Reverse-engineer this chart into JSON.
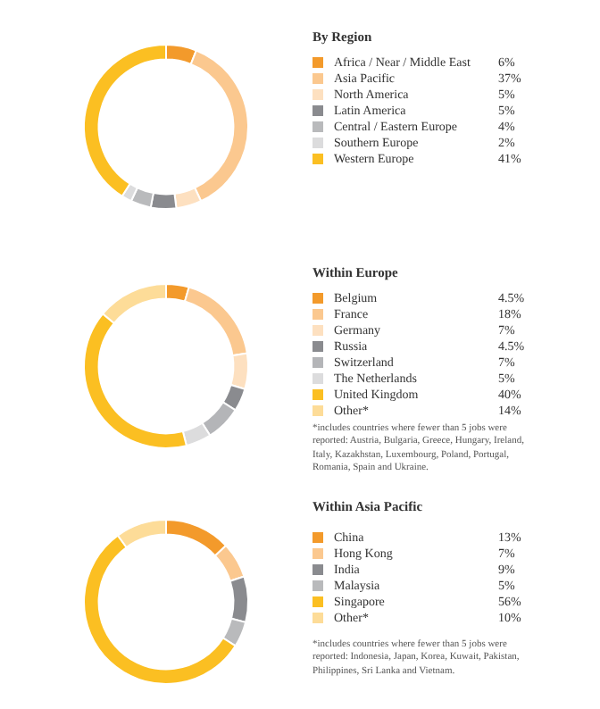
{
  "chart_data": [
    {
      "type": "donut",
      "title": "By Region",
      "categories": [
        "Africa / Near / Middle East",
        "Asia Pacific",
        "North America",
        "Latin America",
        "Central / Eastern Europe",
        "Southern Europe",
        "Western Europe"
      ],
      "values": [
        6,
        37,
        5,
        5,
        4,
        2,
        41
      ],
      "value_labels": [
        "6%",
        "37%",
        "5%",
        "5%",
        "4%",
        "2%",
        "41%"
      ],
      "colors": [
        "#f39a2b",
        "#fbc88f",
        "#fde0c0",
        "#8a8b8f",
        "#b9babc",
        "#dcdcdd",
        "#fbbf22"
      ],
      "legend": "right"
    },
    {
      "type": "donut",
      "title": "Within Europe",
      "categories": [
        "Belgium",
        "France",
        "Germany",
        "Russia",
        "Switzerland",
        "The Netherlands",
        "United Kingdom",
        "Other*"
      ],
      "values": [
        4.5,
        18,
        7,
        4.5,
        7,
        5,
        40,
        14
      ],
      "value_labels": [
        "4.5%",
        "18%",
        "7%",
        "4.5%",
        "7%",
        "5%",
        "40%",
        "14%"
      ],
      "colors": [
        "#f39a2b",
        "#fbc88f",
        "#fde0c0",
        "#8a8b8f",
        "#b4b5b8",
        "#dcdcdd",
        "#fbbf22",
        "#fddc98"
      ],
      "legend": "right",
      "annotations": [
        "*includes countries where fewer than 5 jobs were reported: Austria, Bulgaria, Greece, Hungary, Ireland, Italy, Kazakhstan, Luxembourg, Poland, Portugal, Romania, Spain and Ukraine."
      ]
    },
    {
      "type": "donut",
      "title": "Within Asia Pacific",
      "categories": [
        "China",
        "Hong Kong",
        "India",
        "Malaysia",
        "Singapore",
        "Other*"
      ],
      "values": [
        13,
        7,
        9,
        5,
        56,
        10
      ],
      "value_labels": [
        "13%",
        "7%",
        "9%",
        "5%",
        "56%",
        "10%"
      ],
      "colors": [
        "#f39a2b",
        "#fbc88f",
        "#8a8b8f",
        "#b9babc",
        "#fbbf22",
        "#fddc98"
      ],
      "legend": "right",
      "annotations": [
        "*includes countries where fewer than 5 jobs were reported: Indonesia, Japan, Korea, Kuwait, Pakistan, Philippines, Sri Lanka and Vietnam."
      ]
    }
  ]
}
